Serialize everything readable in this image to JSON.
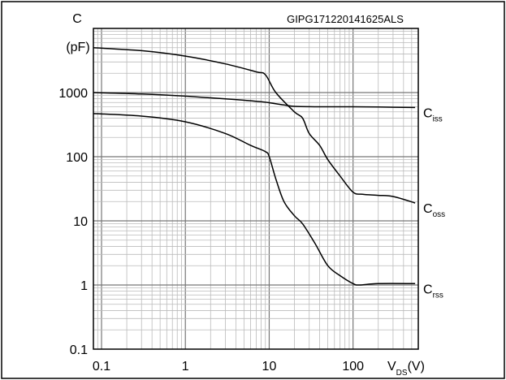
{
  "chart_data": {
    "type": "line",
    "figure_id": "GIPG171220141625ALS",
    "x_scale": "log",
    "y_scale": "log",
    "xlim": [
      0.08,
      600
    ],
    "ylim": [
      0.1,
      10000
    ],
    "grid": true,
    "y_title": "C",
    "y_unit": "(pF)",
    "x_title_main": "V",
    "x_title_sub": "DS",
    "x_title_unit": "(V)",
    "x_ticks": [
      {
        "v": 0.1,
        "label": "0.1"
      },
      {
        "v": 1,
        "label": "1"
      },
      {
        "v": 10,
        "label": "10"
      },
      {
        "v": 100,
        "label": "100"
      }
    ],
    "y_ticks": [
      {
        "v": 0.1,
        "label": "0.1"
      },
      {
        "v": 1,
        "label": "1"
      },
      {
        "v": 10,
        "label": "10"
      },
      {
        "v": 100,
        "label": "100"
      },
      {
        "v": 1000,
        "label": "1000"
      }
    ],
    "series": [
      {
        "main": "C",
        "sub": "iss",
        "points": [
          [
            0.08,
            1000
          ],
          [
            0.3,
            950
          ],
          [
            1,
            880
          ],
          [
            3,
            800
          ],
          [
            8,
            720
          ],
          [
            15,
            640
          ],
          [
            20,
            610
          ],
          [
            40,
            600
          ],
          [
            100,
            600
          ],
          [
            200,
            595
          ],
          [
            550,
            585
          ]
        ]
      },
      {
        "main": "C",
        "sub": "oss",
        "points": [
          [
            0.08,
            5000
          ],
          [
            0.3,
            4500
          ],
          [
            1,
            3700
          ],
          [
            3,
            2800
          ],
          [
            7,
            2100
          ],
          [
            9,
            1900
          ],
          [
            12,
            1000
          ],
          [
            20,
            500
          ],
          [
            25,
            400
          ],
          [
            30,
            230
          ],
          [
            40,
            150
          ],
          [
            50,
            90
          ],
          [
            70,
            50
          ],
          [
            100,
            28
          ],
          [
            130,
            26
          ],
          [
            200,
            25
          ],
          [
            300,
            24
          ],
          [
            550,
            19
          ]
        ]
      },
      {
        "main": "C",
        "sub": "rss",
        "points": [
          [
            0.08,
            470
          ],
          [
            0.3,
            430
          ],
          [
            1,
            350
          ],
          [
            3,
            230
          ],
          [
            6,
            150
          ],
          [
            9,
            120
          ],
          [
            10,
            100
          ],
          [
            12,
            45
          ],
          [
            15,
            20
          ],
          [
            20,
            12
          ],
          [
            25,
            9
          ],
          [
            35,
            4.5
          ],
          [
            50,
            2
          ],
          [
            70,
            1.4
          ],
          [
            100,
            1.05
          ],
          [
            120,
            1.0
          ],
          [
            200,
            1.05
          ],
          [
            550,
            1.05
          ]
        ]
      }
    ]
  }
}
